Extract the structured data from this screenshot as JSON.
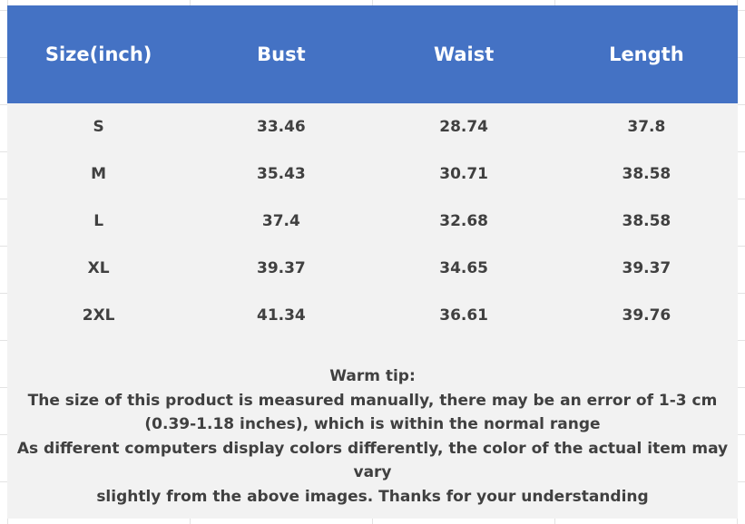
{
  "table": {
    "headers": [
      "Size(inch)",
      "Bust",
      "Waist",
      "Length"
    ],
    "rows": [
      [
        "S",
        "33.46",
        "28.74",
        "37.8"
      ],
      [
        "M",
        "35.43",
        "30.71",
        "38.58"
      ],
      [
        "L",
        "37.4",
        "32.68",
        "38.58"
      ],
      [
        "XL",
        "39.37",
        "34.65",
        "39.37"
      ],
      [
        "2XL",
        "41.34",
        "36.61",
        "39.76"
      ]
    ]
  },
  "tip": {
    "lines": [
      "Warm tip:",
      "The size of this product is measured manually, there may be an error of 1-3 cm",
      "(0.39-1.18 inches), which is within the normal range",
      "As different computers display colors differently, the color of the actual item may vary",
      "slightly from the above images. Thanks for your understanding"
    ]
  },
  "colors": {
    "header": "#4472c4",
    "body": "#f2f2f2",
    "text": "#404040"
  }
}
